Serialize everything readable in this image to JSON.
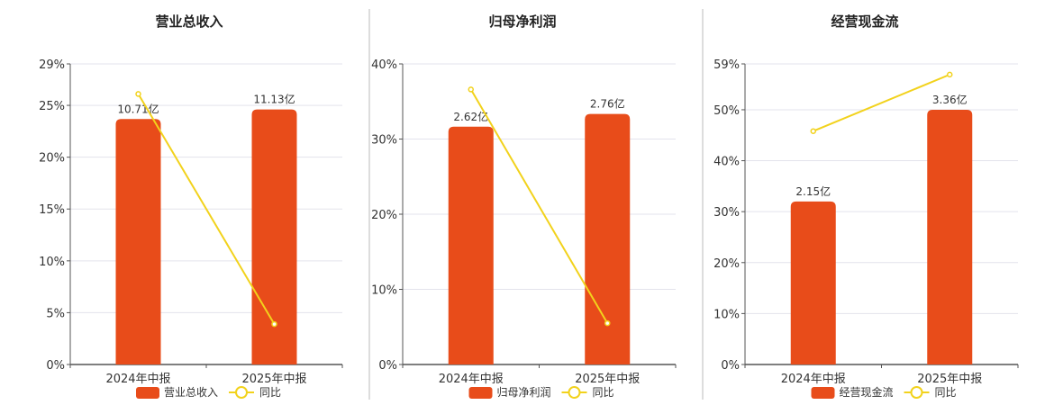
{
  "chart_data": [
    {
      "type": "bar",
      "title": "营业总收入",
      "categories": [
        "2024年中报",
        "2025年中报"
      ],
      "series": [
        {
          "name": "营业总收入",
          "type": "bar",
          "values": [
            10.71,
            11.13
          ],
          "data_labels": [
            "10.71亿",
            "11.13亿"
          ],
          "color": "#e84c1a"
        },
        {
          "name": "同比",
          "type": "line",
          "values": [
            26.1,
            3.9
          ],
          "color": "#f2d21c"
        }
      ],
      "y_ticks": [
        "0%",
        "5%",
        "10%",
        "15%",
        "20%",
        "25%",
        "29%"
      ],
      "ylim": [
        0,
        29
      ],
      "bar_value_scale": 0.4523,
      "grid": true,
      "legend": "bottom"
    },
    {
      "type": "bar",
      "title": "归母净利润",
      "categories": [
        "2024年中报",
        "2025年中报"
      ],
      "series": [
        {
          "name": "归母净利润",
          "type": "bar",
          "values": [
            2.62,
            2.76
          ],
          "data_labels": [
            "2.62亿",
            "2.76亿"
          ],
          "color": "#e84c1a"
        },
        {
          "name": "同比",
          "type": "line",
          "values": [
            36.6,
            5.5
          ],
          "color": "#f2d21c"
        }
      ],
      "y_ticks": [
        "0%",
        "10%",
        "20%",
        "30%",
        "40%"
      ],
      "ylim": [
        0,
        40
      ],
      "bar_value_scale": 0.0828,
      "grid": true,
      "legend": "bottom"
    },
    {
      "type": "bar",
      "title": "经营现金流",
      "categories": [
        "2024年中报",
        "2025年中报"
      ],
      "series": [
        {
          "name": "经营现金流",
          "type": "bar",
          "values": [
            2.15,
            3.36
          ],
          "data_labels": [
            "2.15亿",
            "3.36亿"
          ],
          "color": "#e84c1a"
        },
        {
          "name": "同比",
          "type": "line",
          "values": [
            45.8,
            56.9
          ],
          "color": "#f2d21c"
        }
      ],
      "y_ticks": [
        "0%",
        "10%",
        "20%",
        "30%",
        "40%",
        "50%",
        "59%"
      ],
      "ylim": [
        0,
        59
      ],
      "bar_value_scale": 0.0672,
      "grid": true,
      "legend": "bottom"
    }
  ]
}
